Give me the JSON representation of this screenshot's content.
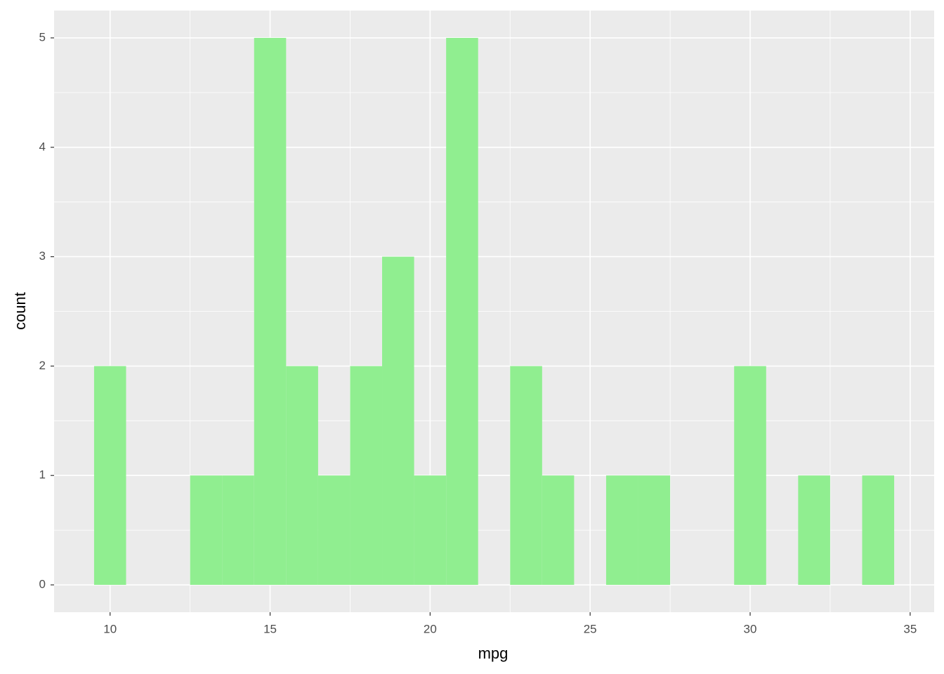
{
  "chart_data": {
    "type": "histogram",
    "x_label": "mpg",
    "y_label": "count",
    "bins": [
      9.5,
      10.5,
      11.5,
      12.5,
      13.5,
      14.5,
      15.5,
      16.5,
      17.5,
      18.5,
      19.5,
      20.5,
      21.5,
      22.5,
      23.5,
      24.5,
      25.5,
      26.5,
      27.5,
      28.5,
      29.5,
      30.5,
      31.5,
      32.5,
      33.5,
      34.5
    ],
    "values": [
      2,
      0,
      0,
      1,
      1,
      5,
      2,
      1,
      2,
      3,
      1,
      5,
      0,
      2,
      1,
      0,
      1,
      1,
      0,
      0,
      2,
      0,
      1,
      0,
      1
    ],
    "color": "#90EE90",
    "xlim": [
      8.25,
      35.75
    ],
    "xticks": [
      10,
      15,
      20,
      25,
      30,
      35
    ],
    "ylim": [
      -0.25,
      5.25
    ],
    "yticks": [
      0,
      1,
      2,
      3,
      4,
      5
    ],
    "grid": true,
    "minor_grid": true
  }
}
